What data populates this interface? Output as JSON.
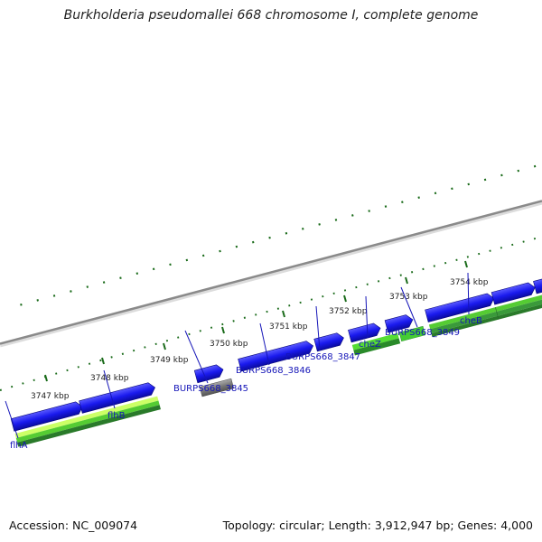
{
  "title": "Burkholderia pseudomallei 668 chromosome I, complete genome",
  "footer": {
    "accession": "Accession: NC_009074",
    "summary": "Topology: circular; Length: 3,912,947 bp; Genes: 4,000"
  },
  "colors": {
    "backbone": "#8c8c8c",
    "forward_gene": "#1a1aee",
    "pseudo_gene": "#777777",
    "cds_light": "#55dd33",
    "cds_dark": "#2a8a2a",
    "tick": "#1a6b1a",
    "label": "#1515b8"
  },
  "scale_labels": [
    "3747 kbp",
    "3748 kbp",
    "3749 kbp",
    "3750 kbp",
    "3751 kbp",
    "3752 kbp",
    "3753 kbp",
    "3754 kbp"
  ],
  "gene_labels": [
    "flhA",
    "flhB",
    "BURPS668_3845",
    "BURPS668_3846",
    "BURPS668_3847",
    "cheZ",
    "BURPS668_3849",
    "cheB"
  ]
}
